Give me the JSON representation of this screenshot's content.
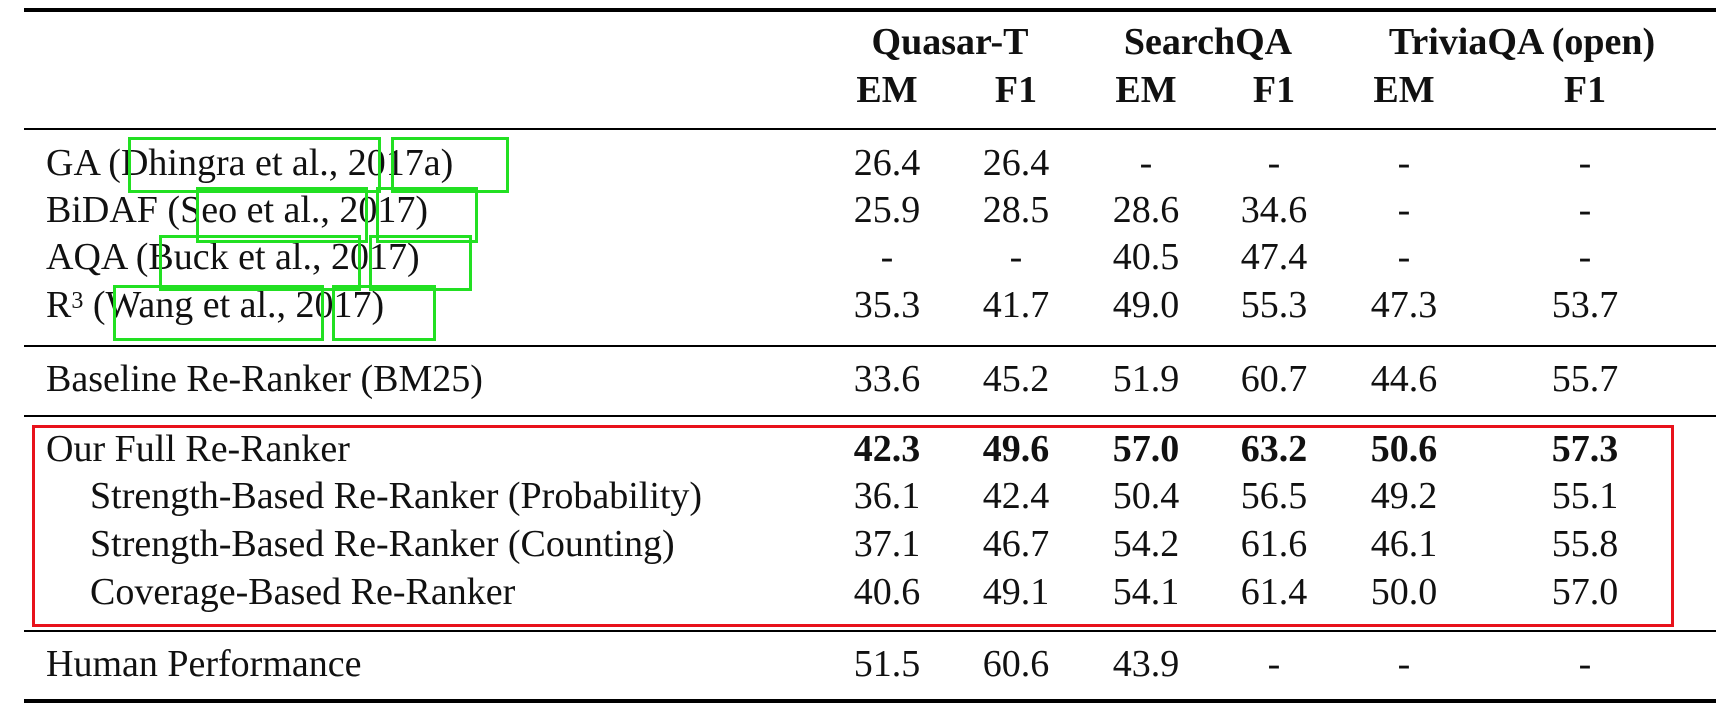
{
  "header": {
    "groups": [
      "Quasar-T",
      "SearchQA",
      "TriviaQA (open)"
    ],
    "subcols": [
      "EM",
      "F1",
      "EM",
      "F1",
      "EM",
      "F1"
    ]
  },
  "rows": [
    {
      "label": "GA (Dhingra et al., 2017a)",
      "values": [
        "26.4",
        "26.4",
        "-",
        "-",
        "-",
        "-"
      ]
    },
    {
      "label": "BiDAF (Seo et al., 2017)",
      "values": [
        "25.9",
        "28.5",
        "28.6",
        "34.6",
        "-",
        "-"
      ]
    },
    {
      "label": "AQA (Buck et al., 2017)",
      "values": [
        "-",
        "-",
        "40.5",
        "47.4",
        "-",
        "-"
      ]
    },
    {
      "label_main": "R",
      "label_sup": "3",
      "label_rest": " (Wang et al., 2017)",
      "values": [
        "35.3",
        "41.7",
        "49.0",
        "55.3",
        "47.3",
        "53.7"
      ]
    },
    {
      "label": "Baseline Re-Ranker (BM25)",
      "values": [
        "33.6",
        "45.2",
        "51.9",
        "60.7",
        "44.6",
        "55.7"
      ]
    },
    {
      "label": "Our Full Re-Ranker",
      "values": [
        "42.3",
        "49.6",
        "57.0",
        "63.2",
        "50.6",
        "57.3"
      ]
    },
    {
      "label": "Strength-Based Re-Ranker (Probability)",
      "values": [
        "36.1",
        "42.4",
        "50.4",
        "56.5",
        "49.2",
        "55.1"
      ]
    },
    {
      "label": "Strength-Based Re-Ranker (Counting)",
      "values": [
        "37.1",
        "46.7",
        "54.2",
        "61.6",
        "46.1",
        "55.8"
      ]
    },
    {
      "label": "Coverage-Based Re-Ranker",
      "values": [
        "40.6",
        "49.1",
        "54.1",
        "61.4",
        "50.0",
        "57.0"
      ]
    },
    {
      "label": "Human Performance",
      "values": [
        "51.5",
        "60.6",
        "43.9",
        "-",
        "-",
        "-"
      ]
    }
  ],
  "colors": {
    "citation_box": "#22e022",
    "highlight_box": "#e8121b"
  }
}
